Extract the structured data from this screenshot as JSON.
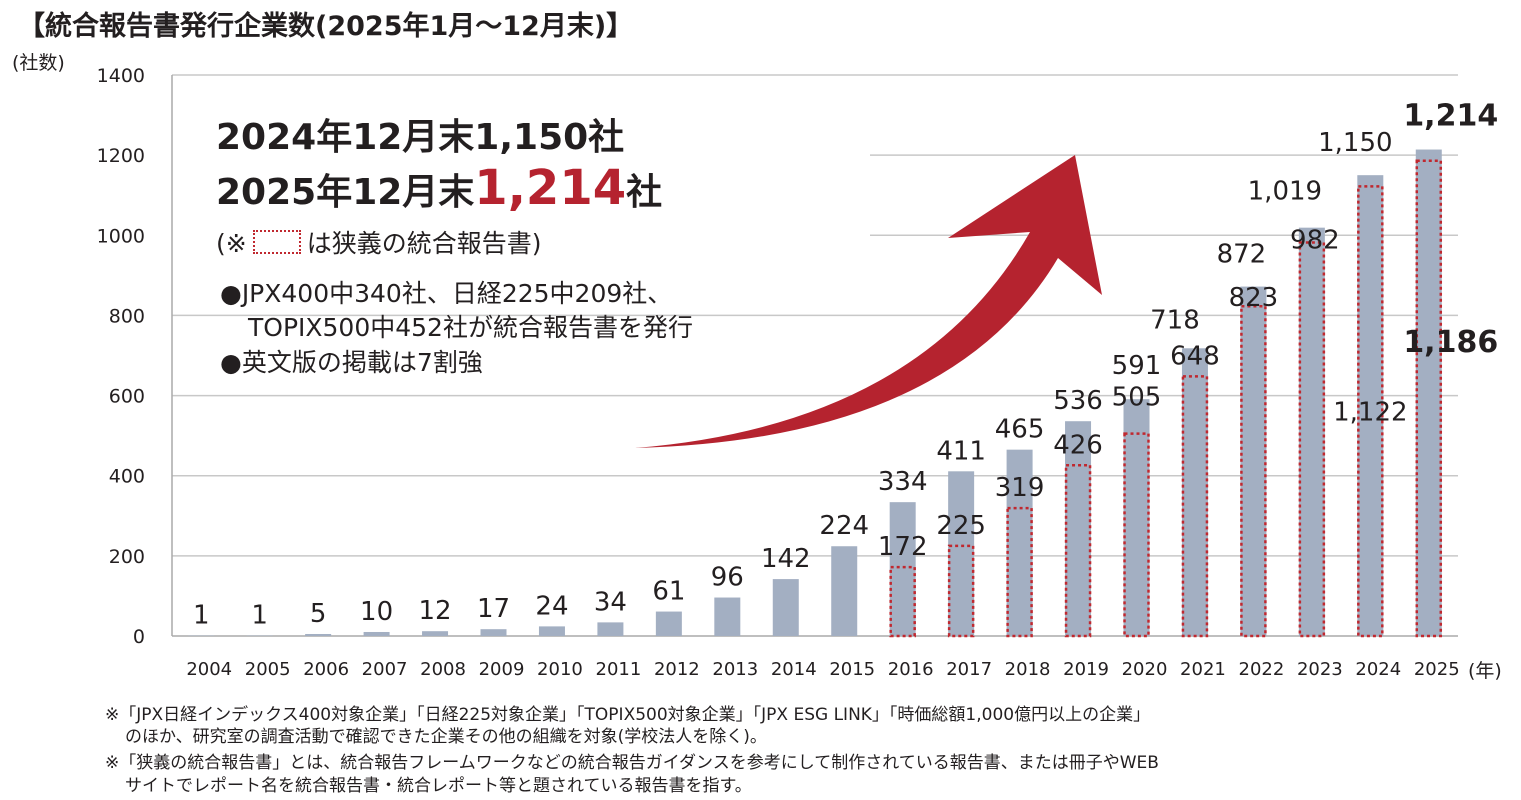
{
  "title": "【統合報告書発行企業数(2025年1月～12月末)】",
  "annotation": {
    "line1": "2024年12月末1,150社",
    "line2_prefix": "2025年12月末",
    "line2_highlight": "1,214",
    "line2_suffix": "社",
    "legend_open": "(※",
    "legend_text": "は狭義の統合報告書)",
    "bullet1a": "●JPX400中340社、日経225中209社、",
    "bullet1b": "TOPIX500中452社が統合報告書を発行",
    "bullet2": "●英文版の掲載は7割強"
  },
  "footnotes": [
    "※「JPX日経インデックス400対象企業」「日経225対象企業」「TOPIX500対象企業」「JPX ESG LINK」「時価総額1,000億円以上の企業」",
    "のほか、研究室の調査活動で確認できた企業その他の組織を対象(学校法人を除く)。",
    "※「狭義の統合報告書」とは、統合報告フレームワークなどの統合報告ガイダンスを参考にして制作されている報告書、または冊子やWEB",
    "サイトでレポート名を統合報告書・統合レポート等と題されている報告書を指す。"
  ],
  "colors": {
    "bar": "#a3afc2",
    "narrow_outline": "#c0282f",
    "arrow": "#b5232f",
    "highlight": "#b5232f"
  },
  "chart_data": {
    "type": "bar",
    "ylabel": "(社数)",
    "xlabel": "(年)",
    "ylim": [
      0,
      1400
    ],
    "yticks": [
      0,
      200,
      400,
      600,
      800,
      1000,
      1200,
      1400
    ],
    "grid": true,
    "categories": [
      "2004",
      "2005",
      "2006",
      "2007",
      "2008",
      "2009",
      "2010",
      "2011",
      "2012",
      "2013",
      "2014",
      "2015",
      "2016",
      "2017",
      "2018",
      "2019",
      "2020",
      "2021",
      "2022",
      "2023",
      "2024",
      "2025"
    ],
    "series": [
      {
        "values": [
          1,
          1,
          5,
          10,
          12,
          17,
          24,
          34,
          61,
          96,
          142,
          224,
          334,
          411,
          465,
          536,
          591,
          718,
          872,
          1019,
          1150,
          1214
        ],
        "labels": [
          "1",
          "1",
          "5",
          "10",
          "12",
          "17",
          "24",
          "34",
          "61",
          "96",
          "142",
          "224",
          "334",
          "411",
          "465",
          "536",
          "591",
          "718",
          "872",
          "1,019",
          "1,150",
          "1,214"
        ]
      },
      {
        "name": "狭義の統合報告書",
        "values": [
          null,
          null,
          null,
          null,
          null,
          null,
          null,
          null,
          null,
          null,
          null,
          null,
          172,
          225,
          319,
          426,
          505,
          648,
          823,
          982,
          1122,
          1186
        ],
        "labels": [
          "",
          "",
          "",
          "",
          "",
          "",
          "",
          "",
          "",
          "",
          "",
          "",
          "172",
          "225",
          "319",
          "426",
          "505",
          "648",
          "823",
          "982",
          "1,122",
          "1,186"
        ]
      }
    ]
  }
}
